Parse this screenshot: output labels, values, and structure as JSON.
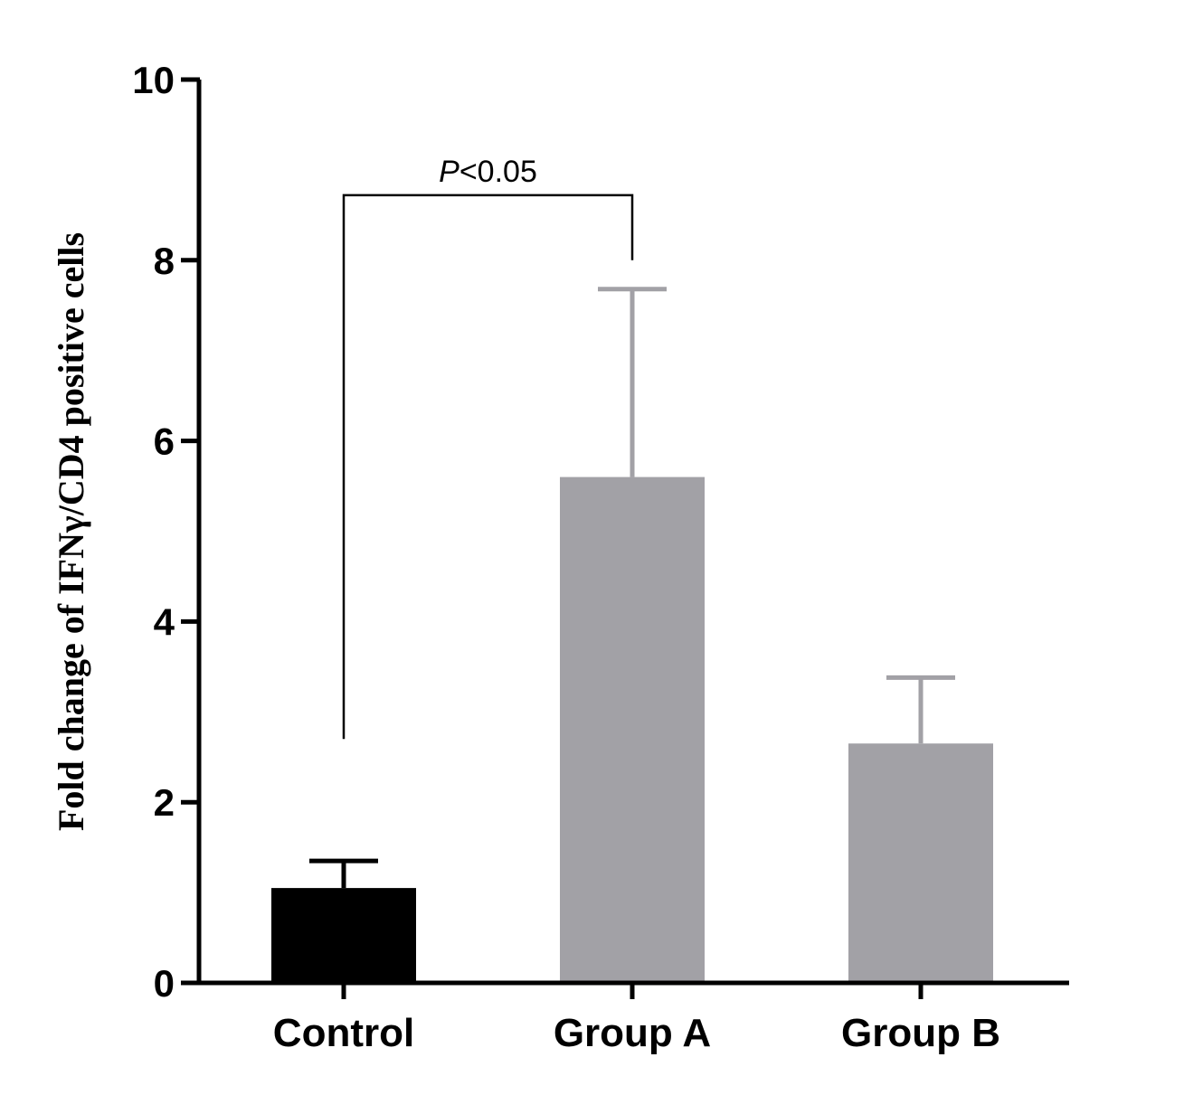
{
  "chart_data": {
    "type": "bar",
    "categories": [
      "Control",
      "Group A",
      "Group B"
    ],
    "values": [
      1.05,
      5.6,
      2.65
    ],
    "error_upper": [
      1.35,
      7.68,
      3.38
    ],
    "colors": [
      "#000000",
      "#a2a1a6",
      "#a2a1a6"
    ],
    "ylabel": "Fold change of IFNγ/CD4 positive cells",
    "ylim": [
      0,
      10
    ],
    "yticks": [
      "0",
      "2",
      "4",
      "6",
      "8",
      "10"
    ],
    "grid": false,
    "significance": {
      "from": "Control",
      "to": "Group A",
      "label_italic": "P",
      "label_rest": "<0.05",
      "from_end": 2.7,
      "to_end": 8.0,
      "top": 8.72
    }
  }
}
